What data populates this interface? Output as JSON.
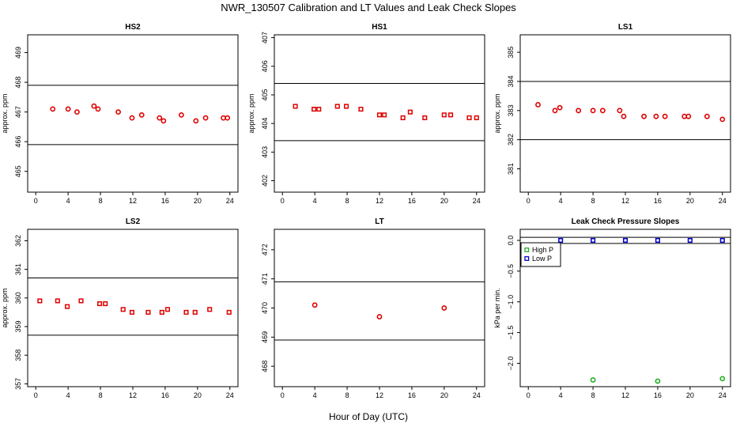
{
  "title": "NWR_130507  Calibration and LT Values and Leak Check Slopes",
  "xlabel": "Hour of Day (UTC)",
  "chart_data": [
    {
      "id": "HS2",
      "type": "scatter",
      "title": "HS2",
      "ylabel": "approx. ppm",
      "xlim": [
        -1,
        25
      ],
      "ylim": [
        464.3,
        469.6
      ],
      "xticks": [
        0,
        4,
        8,
        12,
        16,
        20,
        24
      ],
      "yticks": [
        465,
        466,
        467,
        468,
        469
      ],
      "hlines": [
        467.9,
        465.9
      ],
      "marker": "circle",
      "color": "#e00000",
      "x": [
        2.1,
        4.0,
        5.1,
        7.2,
        7.7,
        10.2,
        11.9,
        13.1,
        15.3,
        15.8,
        18.0,
        19.8,
        21.0,
        23.2,
        23.7
      ],
      "y": [
        467.1,
        467.1,
        467.0,
        467.2,
        467.1,
        467.0,
        466.8,
        466.9,
        466.8,
        466.7,
        466.9,
        466.7,
        466.8,
        466.8,
        466.8
      ]
    },
    {
      "id": "HS1",
      "type": "scatter",
      "title": "HS1",
      "ylabel": "approx. ppm",
      "xlim": [
        -1,
        25
      ],
      "ylim": [
        401.6,
        407.1
      ],
      "xticks": [
        0,
        4,
        8,
        12,
        16,
        20,
        24
      ],
      "yticks": [
        402,
        403,
        404,
        405,
        406,
        407
      ],
      "hlines": [
        405.4,
        403.4
      ],
      "marker": "square",
      "color": "#e00000",
      "x": [
        1.6,
        3.9,
        4.5,
        6.8,
        7.9,
        9.7,
        12.0,
        12.6,
        14.9,
        15.8,
        17.6,
        20.0,
        20.8,
        23.1,
        24.0
      ],
      "y": [
        404.6,
        404.5,
        404.5,
        404.6,
        404.6,
        404.5,
        404.3,
        404.3,
        404.2,
        404.4,
        404.2,
        404.3,
        404.3,
        404.2,
        404.2
      ]
    },
    {
      "id": "LS1",
      "type": "scatter",
      "title": "LS1",
      "ylabel": "approx. ppm",
      "xlim": [
        -1,
        25
      ],
      "ylim": [
        380.2,
        385.6
      ],
      "xticks": [
        0,
        4,
        8,
        12,
        16,
        20,
        24
      ],
      "yticks": [
        381,
        382,
        383,
        384,
        385
      ],
      "hlines": [
        384.0,
        382.0
      ],
      "marker": "circle",
      "color": "#e00000",
      "x": [
        1.2,
        3.3,
        3.9,
        6.2,
        8.0,
        9.2,
        11.3,
        11.8,
        14.3,
        15.8,
        16.9,
        19.3,
        19.8,
        22.1,
        24.0
      ],
      "y": [
        383.2,
        383.0,
        383.1,
        383.0,
        383.0,
        383.0,
        383.0,
        382.8,
        382.8,
        382.8,
        382.8,
        382.8,
        382.8,
        382.8,
        382.7
      ]
    },
    {
      "id": "LS2",
      "type": "scatter",
      "title": "LS2",
      "ylabel": "approx. ppm",
      "xlim": [
        -1,
        25
      ],
      "ylim": [
        356.9,
        362.4
      ],
      "xticks": [
        0,
        4,
        8,
        12,
        16,
        20,
        24
      ],
      "yticks": [
        357,
        358,
        359,
        360,
        361,
        362
      ],
      "hlines": [
        360.7,
        358.7
      ],
      "marker": "square",
      "color": "#e00000",
      "x": [
        0.5,
        2.7,
        3.9,
        5.6,
        7.9,
        8.6,
        10.8,
        11.9,
        13.9,
        15.6,
        16.3,
        18.6,
        19.7,
        21.5,
        23.9
      ],
      "y": [
        359.9,
        359.9,
        359.7,
        359.9,
        359.8,
        359.8,
        359.6,
        359.5,
        359.5,
        359.5,
        359.6,
        359.5,
        359.5,
        359.6,
        359.5
      ]
    },
    {
      "id": "LT",
      "type": "scatter",
      "title": "LT",
      "ylabel": "",
      "xlim": [
        -1,
        25
      ],
      "ylim": [
        467.3,
        472.7
      ],
      "xticks": [
        0,
        4,
        8,
        12,
        16,
        20,
        24
      ],
      "yticks": [
        468,
        469,
        470,
        471,
        472
      ],
      "hlines": [
        470.9,
        468.9
      ],
      "marker": "circle",
      "color": "#e00000",
      "x": [
        4.0,
        12.0,
        20.0
      ],
      "y": [
        470.1,
        469.7,
        470.0
      ]
    },
    {
      "id": "LeakCheck",
      "type": "scatter",
      "title": "Leak Check Pressure Slopes",
      "ylabel": "kPa per min.",
      "xlim": [
        -1,
        25
      ],
      "ylim": [
        -2.38,
        0.18
      ],
      "xticks": [
        0,
        4,
        8,
        12,
        16,
        20,
        24
      ],
      "yticks": [
        0.0,
        -0.5,
        -1.0,
        -1.5,
        -2.0
      ],
      "ytick_labels": [
        "0.0",
        "-0.5",
        "-1.0",
        "-1.5",
        "-2.0"
      ],
      "hlines": [
        0.05,
        -0.05
      ],
      "legend": {
        "placement": "top-left"
      },
      "series": [
        {
          "name": "High P",
          "color": "#20b020",
          "marker": "circle",
          "x": [
            8.0,
            16.0,
            24.0
          ],
          "y": [
            -2.27,
            -2.29,
            -2.25
          ]
        },
        {
          "name": "Low P",
          "color": "#0000cc",
          "marker": "square",
          "x": [
            4.0,
            8.0,
            12.0,
            16.0,
            20.0,
            24.0
          ],
          "y": [
            0.0,
            0.0,
            0.0,
            0.0,
            0.0,
            0.0
          ]
        }
      ]
    }
  ]
}
